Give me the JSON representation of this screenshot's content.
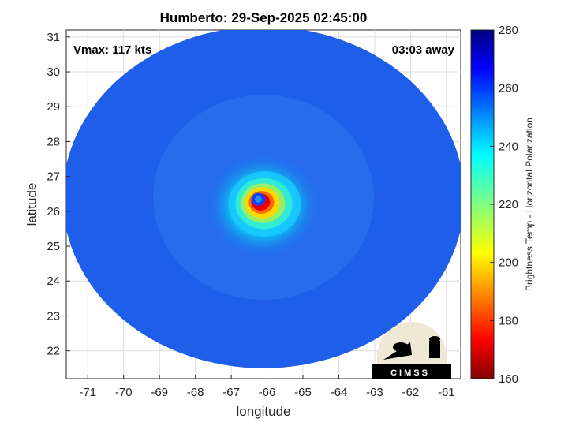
{
  "chart_data": {
    "type": "heatmap",
    "title": "Humberto: 29-Sep-2025 02:45:00",
    "xlabel": "longitude",
    "ylabel": "latitude",
    "xlim": [
      -71.6,
      -60.6
    ],
    "ylim": [
      21.2,
      31.2
    ],
    "xticks": [
      -71,
      -70,
      -69,
      -68,
      -67,
      -66,
      -65,
      -64,
      -63,
      -62,
      -61
    ],
    "yticks": [
      22,
      23,
      24,
      25,
      26,
      27,
      28,
      29,
      30,
      31
    ],
    "grid": true,
    "colorbar": {
      "label": "Brightness Temp - Horizontal Polarization",
      "min": 160,
      "max": 280,
      "ticks": [
        160,
        180,
        200,
        220,
        240,
        260,
        280
      ],
      "colormap": "jet"
    },
    "storm_center": {
      "lon": -66.2,
      "lat": 26.3
    },
    "scan_extent": {
      "center_lon": -66.1,
      "center_lat": 26.4,
      "radius_deg_lon": 5.6,
      "radius_deg_lat": 4.9
    },
    "annotations": [
      {
        "text": "Vmax: 117 kts",
        "position": "top-left"
      },
      {
        "text": "03:03 away",
        "position": "top-right"
      }
    ]
  },
  "logo": {
    "text": "CIMSS",
    "position": "bottom-right"
  }
}
